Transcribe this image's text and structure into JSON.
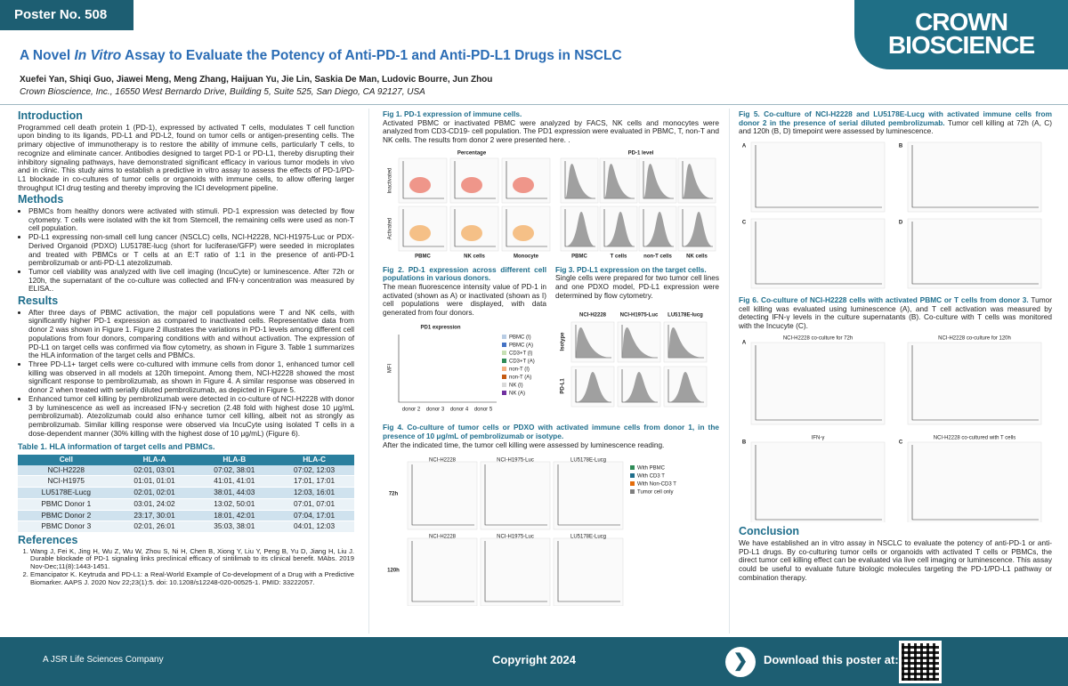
{
  "header": {
    "poster_no": "Poster No. 508",
    "title_pre": "A Novel",
    "title_em": "In Vitro",
    "title_post": "Assay to Evaluate the Potency of Anti-PD-1 and Anti-PD-L1 Drugs in NSCLC",
    "authors": "Xuefei Yan, Shiqi Guo, Jiawei Meng, Meng Zhang, Haijuan Yu, Jie Lin, Saskia De Man, Ludovic Bourre, Jun Zhou",
    "affiliation": "Crown Bioscience, Inc., 16550 West Bernardo Drive, Building 5, Suite 525, San Diego, CA 92127, USA",
    "logo_line1": "CROWN",
    "logo_line2": "BIOSCIENCE"
  },
  "introduction": {
    "heading": "Introduction",
    "text": "Programmed cell death protein 1 (PD-1), expressed by activated T cells, modulates T cell function upon binding to its ligands, PD-L1 and PD-L2, found on tumor cells or antigen-presenting cells. The primary objective of immunotherapy is to restore the ability of immune cells, particularly T cells, to recognize and eliminate cancer. Antibodies designed to target PD-1 or PD-L1, thereby disrupting their inhibitory signaling pathways, have demonstrated significant efficacy in various tumor models in vivo and in clinic. This study aims to establish a predictive in vitro assay to assess the effects of PD-1/PD-L1 blockade in co-cultures of tumor cells or organoids with immune cells, to allow offering larger throughput ICI drug testing and thereby improving the ICI development pipeline."
  },
  "methods": {
    "heading": "Methods",
    "bullets": [
      "PBMCs from healthy donors were activated with stimuli. PD-1 expression was detected by flow cytometry. T cells were isolated with the kit from Stemcell, the remaining cells were used as non-T cell population.",
      "PD-L1 expressing non-small cell lung cancer (NSCLC) cells, NCI-H2228, NCI-H1975-Luc or PDX-Derived Organoid (PDXO) LU5178E-lucg (short for luciferase/GFP) were seeded in microplates and treated with PBMCs or T cells at an E:T ratio of 1:1 in the presence of anti-PD-1 pembrolizumab or anti-PD-L1 atezolizumab.",
      "Tumor cell viability was analyzed with live cell imaging (IncuCyte) or luminescence. After 72h or 120h, the supernatant of the co-culture was collected and IFN-γ concentration was measured by ELISA.."
    ]
  },
  "results": {
    "heading": "Results",
    "bullets": [
      "After three days of PBMC activation, the major cell populations were T and NK cells, with significantly higher PD-1 expression as compared to inactivated cells. Representative data from donor 2 was shown in Figure 1. Figure 2 illustrates the variations in PD-1 levels among different cell populations from four donors, comparing conditions with and without activation. The expression of PD-L1 on target cells was confirmed via flow cytometry, as shown in Figure 3. Table 1 summarizes the HLA information of the target cells and PBMCs.",
      "Three PD-L1+ target cells were co-cultured with immune cells from donor 1, enhanced tumor cell killing was observed in all models at 120h timepoint. Among them, NCI-H2228 showed the most significant response to pembrolizumab, as shown in Figure 4. A similar response was observed in donor 2 when treated with serially diluted pembrolizumab, as depicted in Figure 5.",
      "Enhanced tumor cell killing by pembrolizumab were detected in co-culture of NCI-H2228 with donor 3 by luminescence as well as increased IFN-γ secretion (2.48 fold with highest dose 10 μg/mL pembrolizumab). Atezolizumab could also enhance tumor cell killing, albeit not as strongly as pembrolizumab. Similar killing response were observed via IncuCyte using isolated T cells in a dose-dependent manner (30% killing with the highest dose of 10 μg/mL) (Figure 6)."
    ]
  },
  "table": {
    "caption": "Table 1. HLA information of target cells and PBMCs.",
    "columns": [
      "Cell",
      "HLA-A",
      "HLA-B",
      "HLA-C"
    ],
    "rows": [
      [
        "NCI-H2228",
        "02:01, 03:01",
        "07:02, 38:01",
        "07:02, 12:03"
      ],
      [
        "NCI-H1975",
        "01:01, 01:01",
        "41:01, 41:01",
        "17:01, 17:01"
      ],
      [
        "LU5178E-Lucg",
        "02:01, 02:01",
        "38:01, 44:03",
        "12:03, 16:01"
      ],
      [
        "PBMC Donor 1",
        "03:01, 24:02",
        "13:02, 50:01",
        "07:01, 07:01"
      ],
      [
        "PBMC Donor 2",
        "23:17, 30:01",
        "18:01, 42:01",
        "07:04, 17:01"
      ],
      [
        "PBMC Donor 3",
        "02:01, 26:01",
        "35:03, 38:01",
        "04:01, 12:03"
      ]
    ]
  },
  "references": {
    "heading": "References",
    "items": [
      "Wang J, Fei K, Jing H, Wu Z, Wu W, Zhou S, Ni H, Chen B, Xiong Y, Liu Y, Peng B, Yu D, Jiang H, Liu J. Durable blockade of PD-1 signaling links preclinical efficacy of sintilimab to its clinical benefit. MAbs. 2019 Nov-Dec;11(8):1443-1451.",
      "Emancipator K. Keytruda and PD-L1: a Real-World Example of Co-development of a Drug with a Predictive Biomarker. AAPS J. 2020 Nov 22;23(1):5. doi: 10.1208/s12248-020-00525-1. PMID: 33222057."
    ]
  },
  "fig1": {
    "title": "Fig 1. PD-1 expression of immune cells.",
    "text": "Activated PBMC or inactivated PBMC were analyzed by FACS, NK cells and monocytes were analyzed from CD3-CD19- cell population. The PD1 expression were evaluated in PBMC, T, non-T and NK cells. The results from donor 2 were presented here. .",
    "left_heading": "Percentage",
    "right_heading": "PD-1 level",
    "rows": [
      "Inactivated",
      "Activated"
    ],
    "left_labels": [
      "PBMC",
      "NK cells",
      "Monocyte"
    ],
    "right_labels": [
      "PBMC",
      "T cells",
      "non-T cells",
      "NK cells"
    ]
  },
  "fig2": {
    "title": "Fig 2. PD-1 expression across different cell populations in various donors.",
    "text": "The mean fluorescence intensity value of PD-1 in activated (shown as A) or inactivated (shown as I) cell populations were displayed, with data generated from four donors.",
    "chart_title": "PD1 expression",
    "y_label": "MFI",
    "categories": [
      "donor 2",
      "donor 3",
      "donor 4",
      "donor 5"
    ],
    "legend": [
      "PBMC (I)",
      "PBMC (A)",
      "CD3+T (I)",
      "CD3+T (A)",
      "non-T (I)",
      "non-T (A)",
      "NK (I)",
      "NK (A)"
    ]
  },
  "fig3": {
    "title": "Fig 3. PD-L1 expression on the target cells.",
    "text": "Single cells were prepared for two tumor cell lines and one PDXO model, PD-L1 expression were determined by flow cytometry.",
    "columns": [
      "NCI-H2228",
      "NCI-H1975-Luc",
      "LU5178E-lucg"
    ],
    "rows": [
      "Isotype",
      "PD-L1"
    ]
  },
  "fig4": {
    "title": "Fig 4. Co-culture of tumor cells or PDXO with activated immune cells from donor 1, in the presence of 10 μg/mL of pembrolizumab or isotype.",
    "text": "After the indicated time, the tumor cell killing were assessed by luminescence reading.",
    "rows": [
      "72h",
      "120h"
    ],
    "columns": [
      "NCI-H2228",
      "NCI-H1975-Luc",
      "LU5178E-Lucg"
    ],
    "legend": [
      "With PBMC",
      "With CD3 T",
      "With Non-CD3 T",
      "Tumor cell only"
    ]
  },
  "fig5": {
    "title": "Fig 5. Co-culture of NCI-H2228 and LU5178E-Lucg with activated immune cells from donor 2 in the presence of serial diluted pembrolizumab.",
    "text": "Tumor cell killing at 72h (A, C) and 120h (B, D) timepoint were assessed by luminescence.",
    "panels": [
      "A",
      "B",
      "C",
      "D"
    ]
  },
  "fig6": {
    "title": "Fig 6. Co-culture of NCI-H2228 cells with activated PBMC or T cells from donor 3.",
    "text": "Tumor cell killing was evaluated using luminescence (A), and T cell activation was measured by detecting IFN-γ levels in the culture supernatants (B). Co-culture with T cells was monitored with the Incucyte (C).",
    "panels": [
      "A",
      "B",
      "C"
    ],
    "panel_titles": [
      "NCI-H2228 co-culture for 72h",
      "NCI-H2228 co-culture for 120h",
      "IFN-γ",
      "NCI-H2228 co-cultured with T cells"
    ]
  },
  "conclusion": {
    "heading": "Conclusion",
    "text": "We have established an in vitro assay in NSCLC to evaluate the potency of anti-PD-1 or anti-PD-L1 drugs. By co-culturing tumor cells or organoids with activated T cells or PBMCs, the direct tumor cell killing effect can be evaluated via live cell imaging or luminescence. This assay could be useful to evaluate future biologic molecules targeting the PD-1/PD-L1 pathway or combination therapy."
  },
  "footer": {
    "company": "A JSR Life Sciences Company",
    "copyright": "Copyright 2024",
    "download": "Download this poster at:"
  }
}
